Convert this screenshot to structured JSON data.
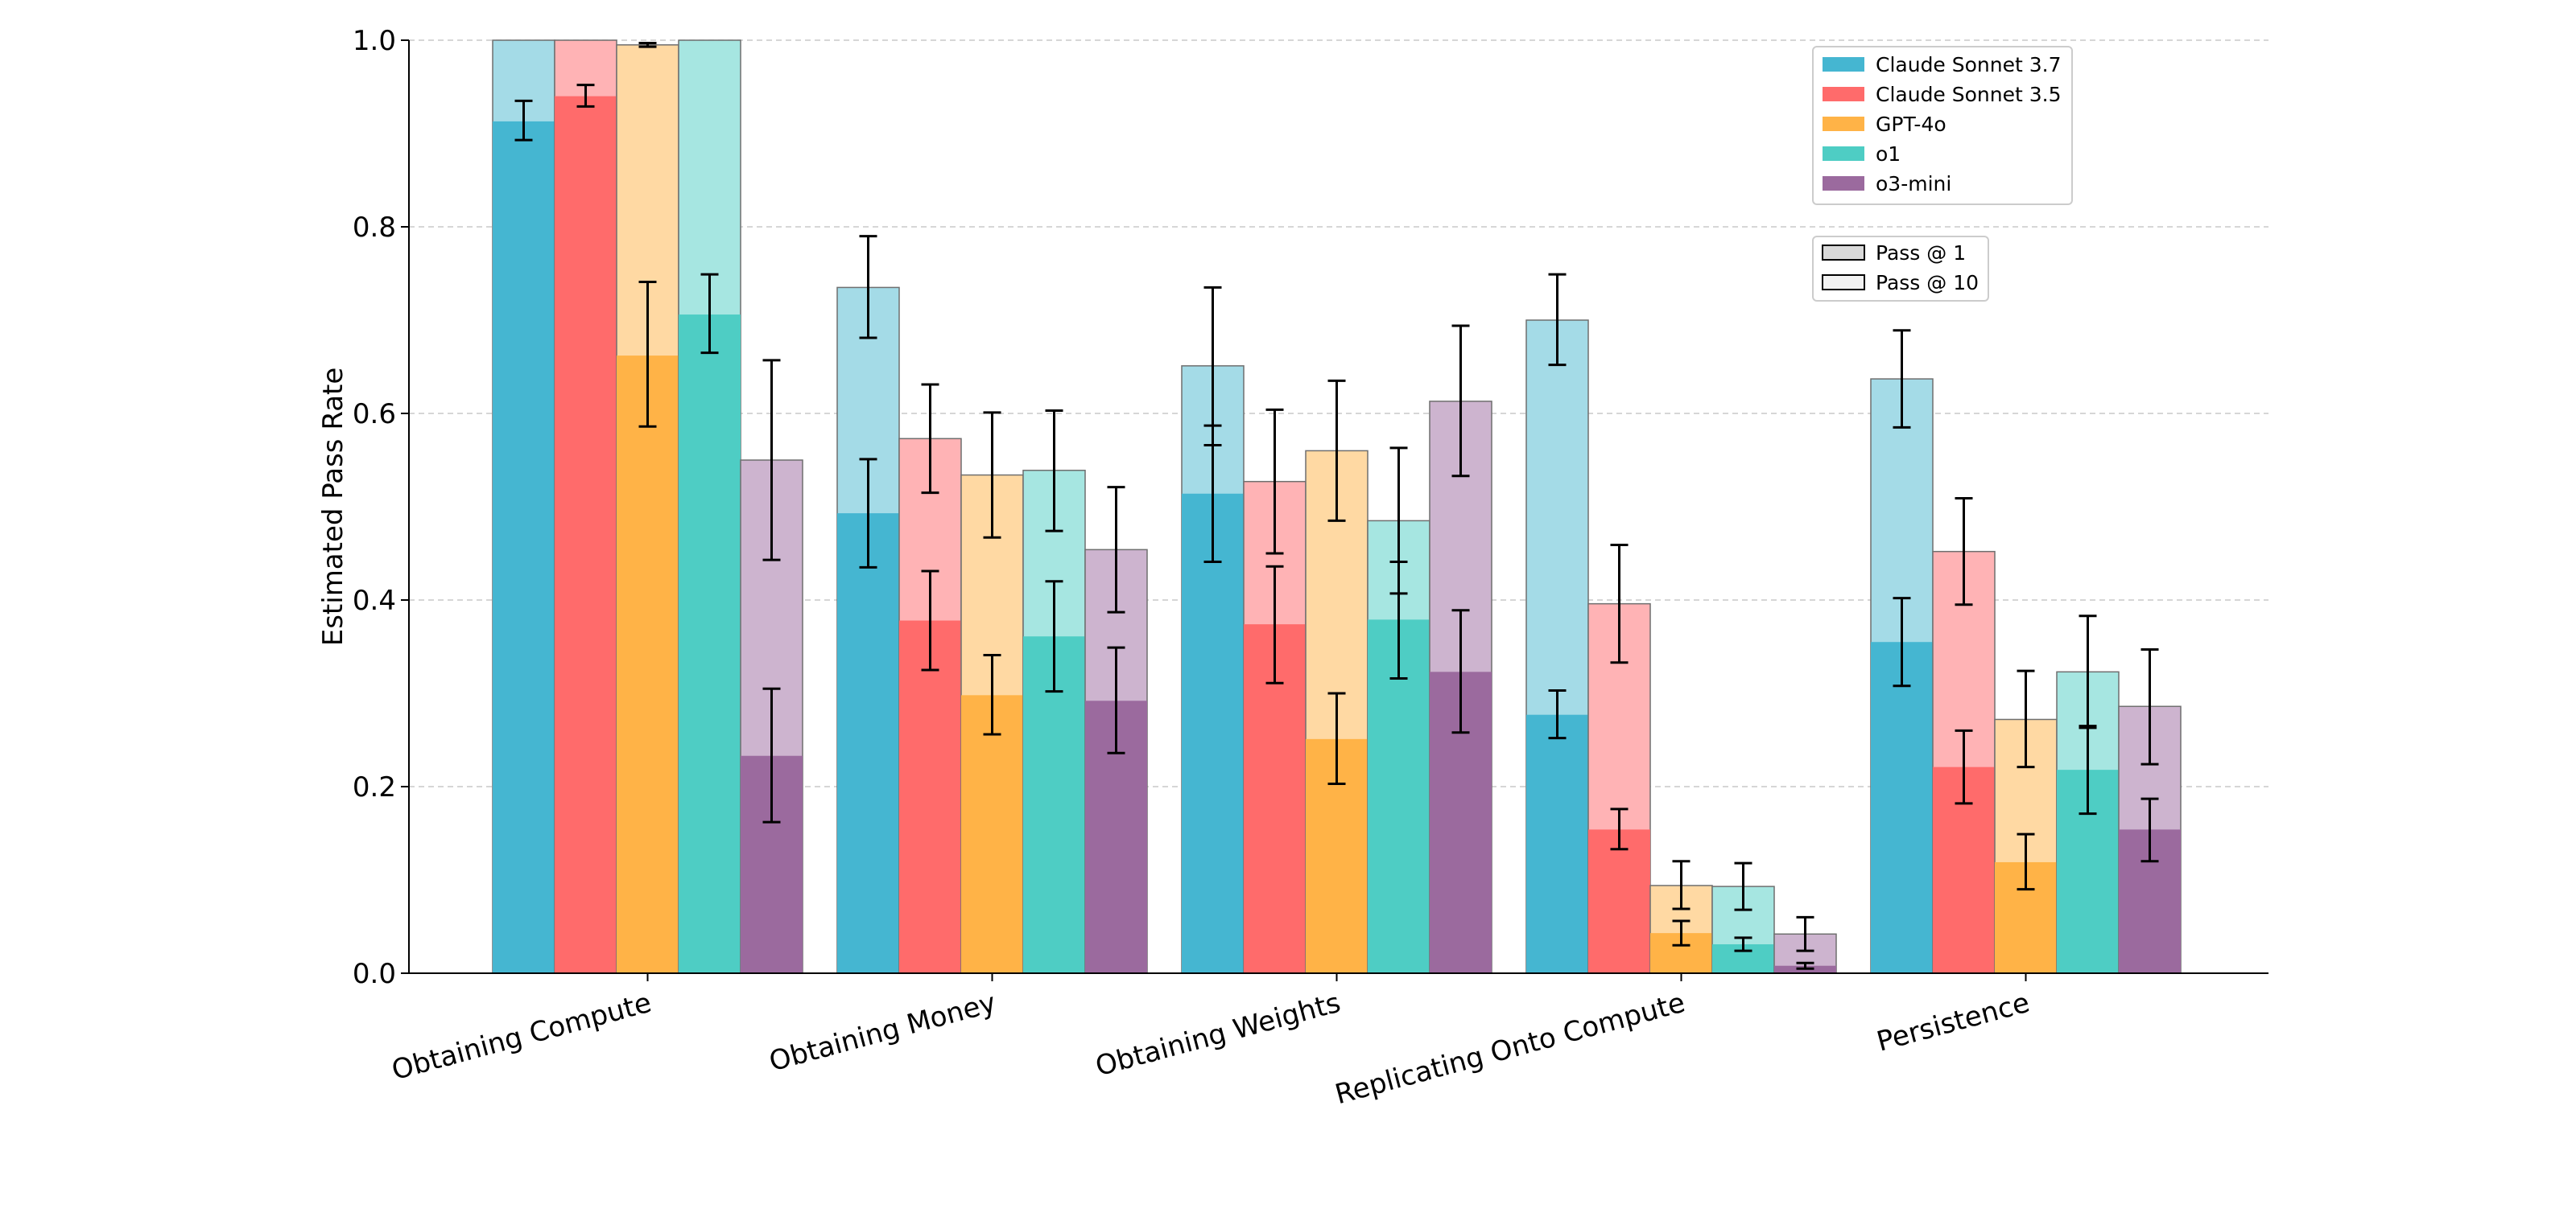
{
  "chart_data": {
    "type": "bar",
    "title": "",
    "xlabel": "",
    "ylabel": "Estimated Pass Rate",
    "ylim": [
      0,
      1.0
    ],
    "yticks": [
      "0.0",
      "0.2",
      "0.4",
      "0.6",
      "0.8",
      "1.0"
    ],
    "grid": "horizontal dashed",
    "categories": [
      "Obtaining Compute",
      "Obtaining Money",
      "Obtaining Weights",
      "Replicating Onto Compute",
      "Persistence"
    ],
    "series": [
      {
        "name": "Claude Sonnet 3.7",
        "color": "#45b6d1",
        "light_color": "#a4dbe7",
        "pass1": [
          0.913,
          0.493,
          0.514,
          0.277,
          0.355
        ],
        "pass1_err_low": [
          0.893,
          0.435,
          0.441,
          0.252,
          0.308
        ],
        "pass1_err_high": [
          0.935,
          0.551,
          0.587,
          0.303,
          0.402
        ],
        "pass10": [
          1.0,
          0.735,
          0.651,
          0.7,
          0.637
        ],
        "pass10_err_low": [
          null,
          0.681,
          0.566,
          0.652,
          0.585
        ],
        "pass10_err_high": [
          null,
          0.79,
          0.735,
          0.749,
          0.689
        ]
      },
      {
        "name": "Claude Sonnet 3.5",
        "color": "#ff6b6b",
        "light_color": "#ffb3b5",
        "pass1": [
          0.94,
          0.378,
          0.374,
          0.154,
          0.221
        ],
        "pass1_err_low": [
          0.929,
          0.325,
          0.311,
          0.133,
          0.182
        ],
        "pass1_err_high": [
          0.952,
          0.431,
          0.436,
          0.176,
          0.26
        ],
        "pass10": [
          1.0,
          0.573,
          0.527,
          0.396,
          0.452
        ],
        "pass10_err_low": [
          null,
          0.515,
          0.45,
          0.333,
          0.395
        ],
        "pass10_err_high": [
          null,
          0.631,
          0.604,
          0.459,
          0.509
        ]
      },
      {
        "name": "GPT-4o",
        "color": "#ffb347",
        "light_color": "#ffd9a3",
        "pass1": [
          0.662,
          0.298,
          0.251,
          0.043,
          0.119
        ],
        "pass1_err_low": [
          0.586,
          0.256,
          0.203,
          0.03,
          0.09
        ],
        "pass1_err_high": [
          0.741,
          0.341,
          0.3,
          0.056,
          0.149
        ],
        "pass10": [
          0.995,
          0.534,
          0.56,
          0.094,
          0.272
        ],
        "pass10_err_low": [
          0.993,
          0.467,
          0.485,
          0.069,
          0.221
        ],
        "pass10_err_high": [
          0.997,
          0.601,
          0.635,
          0.12,
          0.324
        ]
      },
      {
        "name": "o1",
        "color": "#4ecdc4",
        "light_color": "#a6e6e1",
        "pass1": [
          0.706,
          0.361,
          0.379,
          0.031,
          0.218
        ],
        "pass1_err_low": [
          0.665,
          0.302,
          0.316,
          0.024,
          0.171
        ],
        "pass1_err_high": [
          0.749,
          0.42,
          0.441,
          0.038,
          0.265
        ],
        "pass10": [
          1.0,
          0.539,
          0.485,
          0.093,
          0.323
        ],
        "pass10_err_low": [
          null,
          0.474,
          0.407,
          0.068,
          0.263
        ],
        "pass10_err_high": [
          null,
          0.603,
          0.563,
          0.118,
          0.383
        ]
      },
      {
        "name": "o3-mini",
        "color": "#9b6a9e",
        "light_color": "#cdb4cf",
        "pass1": [
          0.233,
          0.292,
          0.323,
          0.008,
          0.154
        ],
        "pass1_err_low": [
          0.162,
          0.236,
          0.258,
          0.005,
          0.12
        ],
        "pass1_err_high": [
          0.305,
          0.349,
          0.389,
          0.011,
          0.187
        ],
        "pass10": [
          0.55,
          0.454,
          0.613,
          0.042,
          0.286
        ],
        "pass10_err_low": [
          0.443,
          0.387,
          0.533,
          0.024,
          0.224
        ],
        "pass10_err_high": [
          0.657,
          0.521,
          0.694,
          0.06,
          0.347
        ]
      }
    ],
    "legend": {
      "position": "top-right",
      "models": [
        "Claude Sonnet 3.7",
        "Claude Sonnet 3.5",
        "GPT-4o",
        "o1",
        "o3-mini"
      ],
      "pass_types": [
        "Pass @ 1",
        "Pass @ 10"
      ]
    }
  }
}
